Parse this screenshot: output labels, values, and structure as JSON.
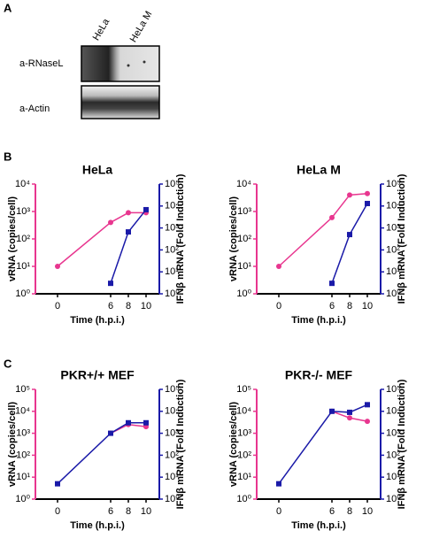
{
  "panels": {
    "a": "A",
    "b": "B",
    "c": "C"
  },
  "blot": {
    "lanes": [
      "HeLa",
      "HeLa M"
    ],
    "rows": [
      "a-RNaseL",
      "a-Actin"
    ]
  },
  "chart_data": [
    {
      "type": "line",
      "title": "HeLa",
      "xlabel": "Time (h.p.i.)",
      "ylabel": "vRNA (copies/cell)",
      "y2label": "IFNβ mRNA (Fold Induction)",
      "x": [
        0,
        6,
        8,
        10
      ],
      "xlim": [
        -2.5,
        11.5
      ],
      "xticks": [
        0,
        6,
        8,
        10
      ],
      "log_y": true,
      "ylim": [
        1,
        10000
      ],
      "yticks": [
        {
          "value": 1,
          "label": "10⁰"
        },
        {
          "value": 10,
          "label": "10¹"
        },
        {
          "value": 100,
          "label": "10²"
        },
        {
          "value": 1000,
          "label": "10³"
        },
        {
          "value": 10000,
          "label": "10⁴"
        }
      ],
      "y2lim": [
        1,
        100000
      ],
      "y2ticks": [
        {
          "value": 1,
          "label": "10⁰"
        },
        {
          "value": 10,
          "label": "10¹"
        },
        {
          "value": 100,
          "label": "10²"
        },
        {
          "value": 1000,
          "label": "10³"
        },
        {
          "value": 10000,
          "label": "10⁴"
        },
        {
          "value": 100000,
          "label": "10⁵"
        }
      ],
      "series": [
        {
          "color": "#e8368f",
          "marker": "circle",
          "values": [
            10,
            400,
            900,
            900
          ]
        },
        {
          "color": "#1a1aa8",
          "marker": "square",
          "axis": "y2",
          "values": [
            null,
            3,
            660,
            6800
          ]
        }
      ]
    },
    {
      "type": "line",
      "title": "HeLa M",
      "xlabel": "Time (h.p.i.)",
      "ylabel": "vRNA (copies/cell)",
      "y2label": "IFNβ mRNA (Fold Induction)",
      "x": [
        0,
        6,
        8,
        10
      ],
      "xlim": [
        -2.5,
        11.5
      ],
      "xticks": [
        0,
        6,
        8,
        10
      ],
      "log_y": true,
      "ylim": [
        1,
        10000
      ],
      "yticks": [
        {
          "value": 1,
          "label": "10⁰"
        },
        {
          "value": 10,
          "label": "10¹"
        },
        {
          "value": 100,
          "label": "10²"
        },
        {
          "value": 1000,
          "label": "10³"
        },
        {
          "value": 10000,
          "label": "10⁴"
        }
      ],
      "y2lim": [
        1,
        100000
      ],
      "y2ticks": [
        {
          "value": 1,
          "label": "10⁰"
        },
        {
          "value": 10,
          "label": "10¹"
        },
        {
          "value": 100,
          "label": "10²"
        },
        {
          "value": 1000,
          "label": "10³"
        },
        {
          "value": 10000,
          "label": "10⁴"
        },
        {
          "value": 100000,
          "label": "10⁵"
        }
      ],
      "series": [
        {
          "color": "#e8368f",
          "marker": "circle",
          "values": [
            10,
            600,
            4000,
            4500
          ]
        },
        {
          "color": "#1a1aa8",
          "marker": "square",
          "axis": "y2",
          "values": [
            null,
            3,
            500,
            13000
          ]
        }
      ]
    },
    {
      "type": "line",
      "title": "PKR+/+ MEF",
      "xlabel": "Time (h.p.i.)",
      "ylabel": "vRNA (copies/cell)",
      "y2label": "IFNβ mRNA (Fold Induction)",
      "x": [
        0,
        6,
        8,
        10
      ],
      "xlim": [
        -2.5,
        11.5
      ],
      "xticks": [
        0,
        6,
        8,
        10
      ],
      "log_y": true,
      "ylim": [
        1,
        100000
      ],
      "yticks": [
        {
          "value": 1,
          "label": "10⁰"
        },
        {
          "value": 10,
          "label": "10¹"
        },
        {
          "value": 100,
          "label": "10²"
        },
        {
          "value": 1000,
          "label": "10³"
        },
        {
          "value": 10000,
          "label": "10⁴"
        },
        {
          "value": 100000,
          "label": "10⁵"
        }
      ],
      "y2lim": [
        1,
        100000
      ],
      "y2ticks": [
        {
          "value": 1,
          "label": "10⁰"
        },
        {
          "value": 10,
          "label": "10¹"
        },
        {
          "value": 100,
          "label": "10²"
        },
        {
          "value": 1000,
          "label": "10³"
        },
        {
          "value": 10000,
          "label": "10⁴"
        },
        {
          "value": 100000,
          "label": "10⁵"
        }
      ],
      "series": [
        {
          "color": "#e8368f",
          "marker": "circle",
          "values": [
            null,
            1000,
            2500,
            2000
          ]
        },
        {
          "color": "#1a1aa8",
          "marker": "square",
          "axis": "y2",
          "values": [
            5,
            1000,
            3000,
            3000
          ]
        }
      ]
    },
    {
      "type": "line",
      "title": "PKR-/- MEF",
      "xlabel": "Time (h.p.i.)",
      "ylabel": "vRNA (copies/cell)",
      "y2label": "IFNβ mRNA (Fold Induction)",
      "x": [
        0,
        6,
        8,
        10
      ],
      "xlim": [
        -2.5,
        11.5
      ],
      "xticks": [
        0,
        6,
        8,
        10
      ],
      "log_y": true,
      "ylim": [
        1,
        100000
      ],
      "yticks": [
        {
          "value": 1,
          "label": "10⁰"
        },
        {
          "value": 10,
          "label": "10¹"
        },
        {
          "value": 100,
          "label": "10²"
        },
        {
          "value": 1000,
          "label": "10³"
        },
        {
          "value": 10000,
          "label": "10⁴"
        },
        {
          "value": 100000,
          "label": "10⁵"
        }
      ],
      "y2lim": [
        1,
        100000
      ],
      "y2ticks": [
        {
          "value": 1,
          "label": "10⁰"
        },
        {
          "value": 10,
          "label": "10¹"
        },
        {
          "value": 100,
          "label": "10²"
        },
        {
          "value": 1000,
          "label": "10³"
        },
        {
          "value": 10000,
          "label": "10⁴"
        },
        {
          "value": 100000,
          "label": "10⁵"
        }
      ],
      "series": [
        {
          "color": "#e8368f",
          "marker": "circle",
          "values": [
            null,
            10000,
            5000,
            3500
          ]
        },
        {
          "color": "#1a1aa8",
          "marker": "square",
          "axis": "y2",
          "values": [
            5,
            10000,
            9000,
            20000
          ]
        }
      ]
    }
  ]
}
